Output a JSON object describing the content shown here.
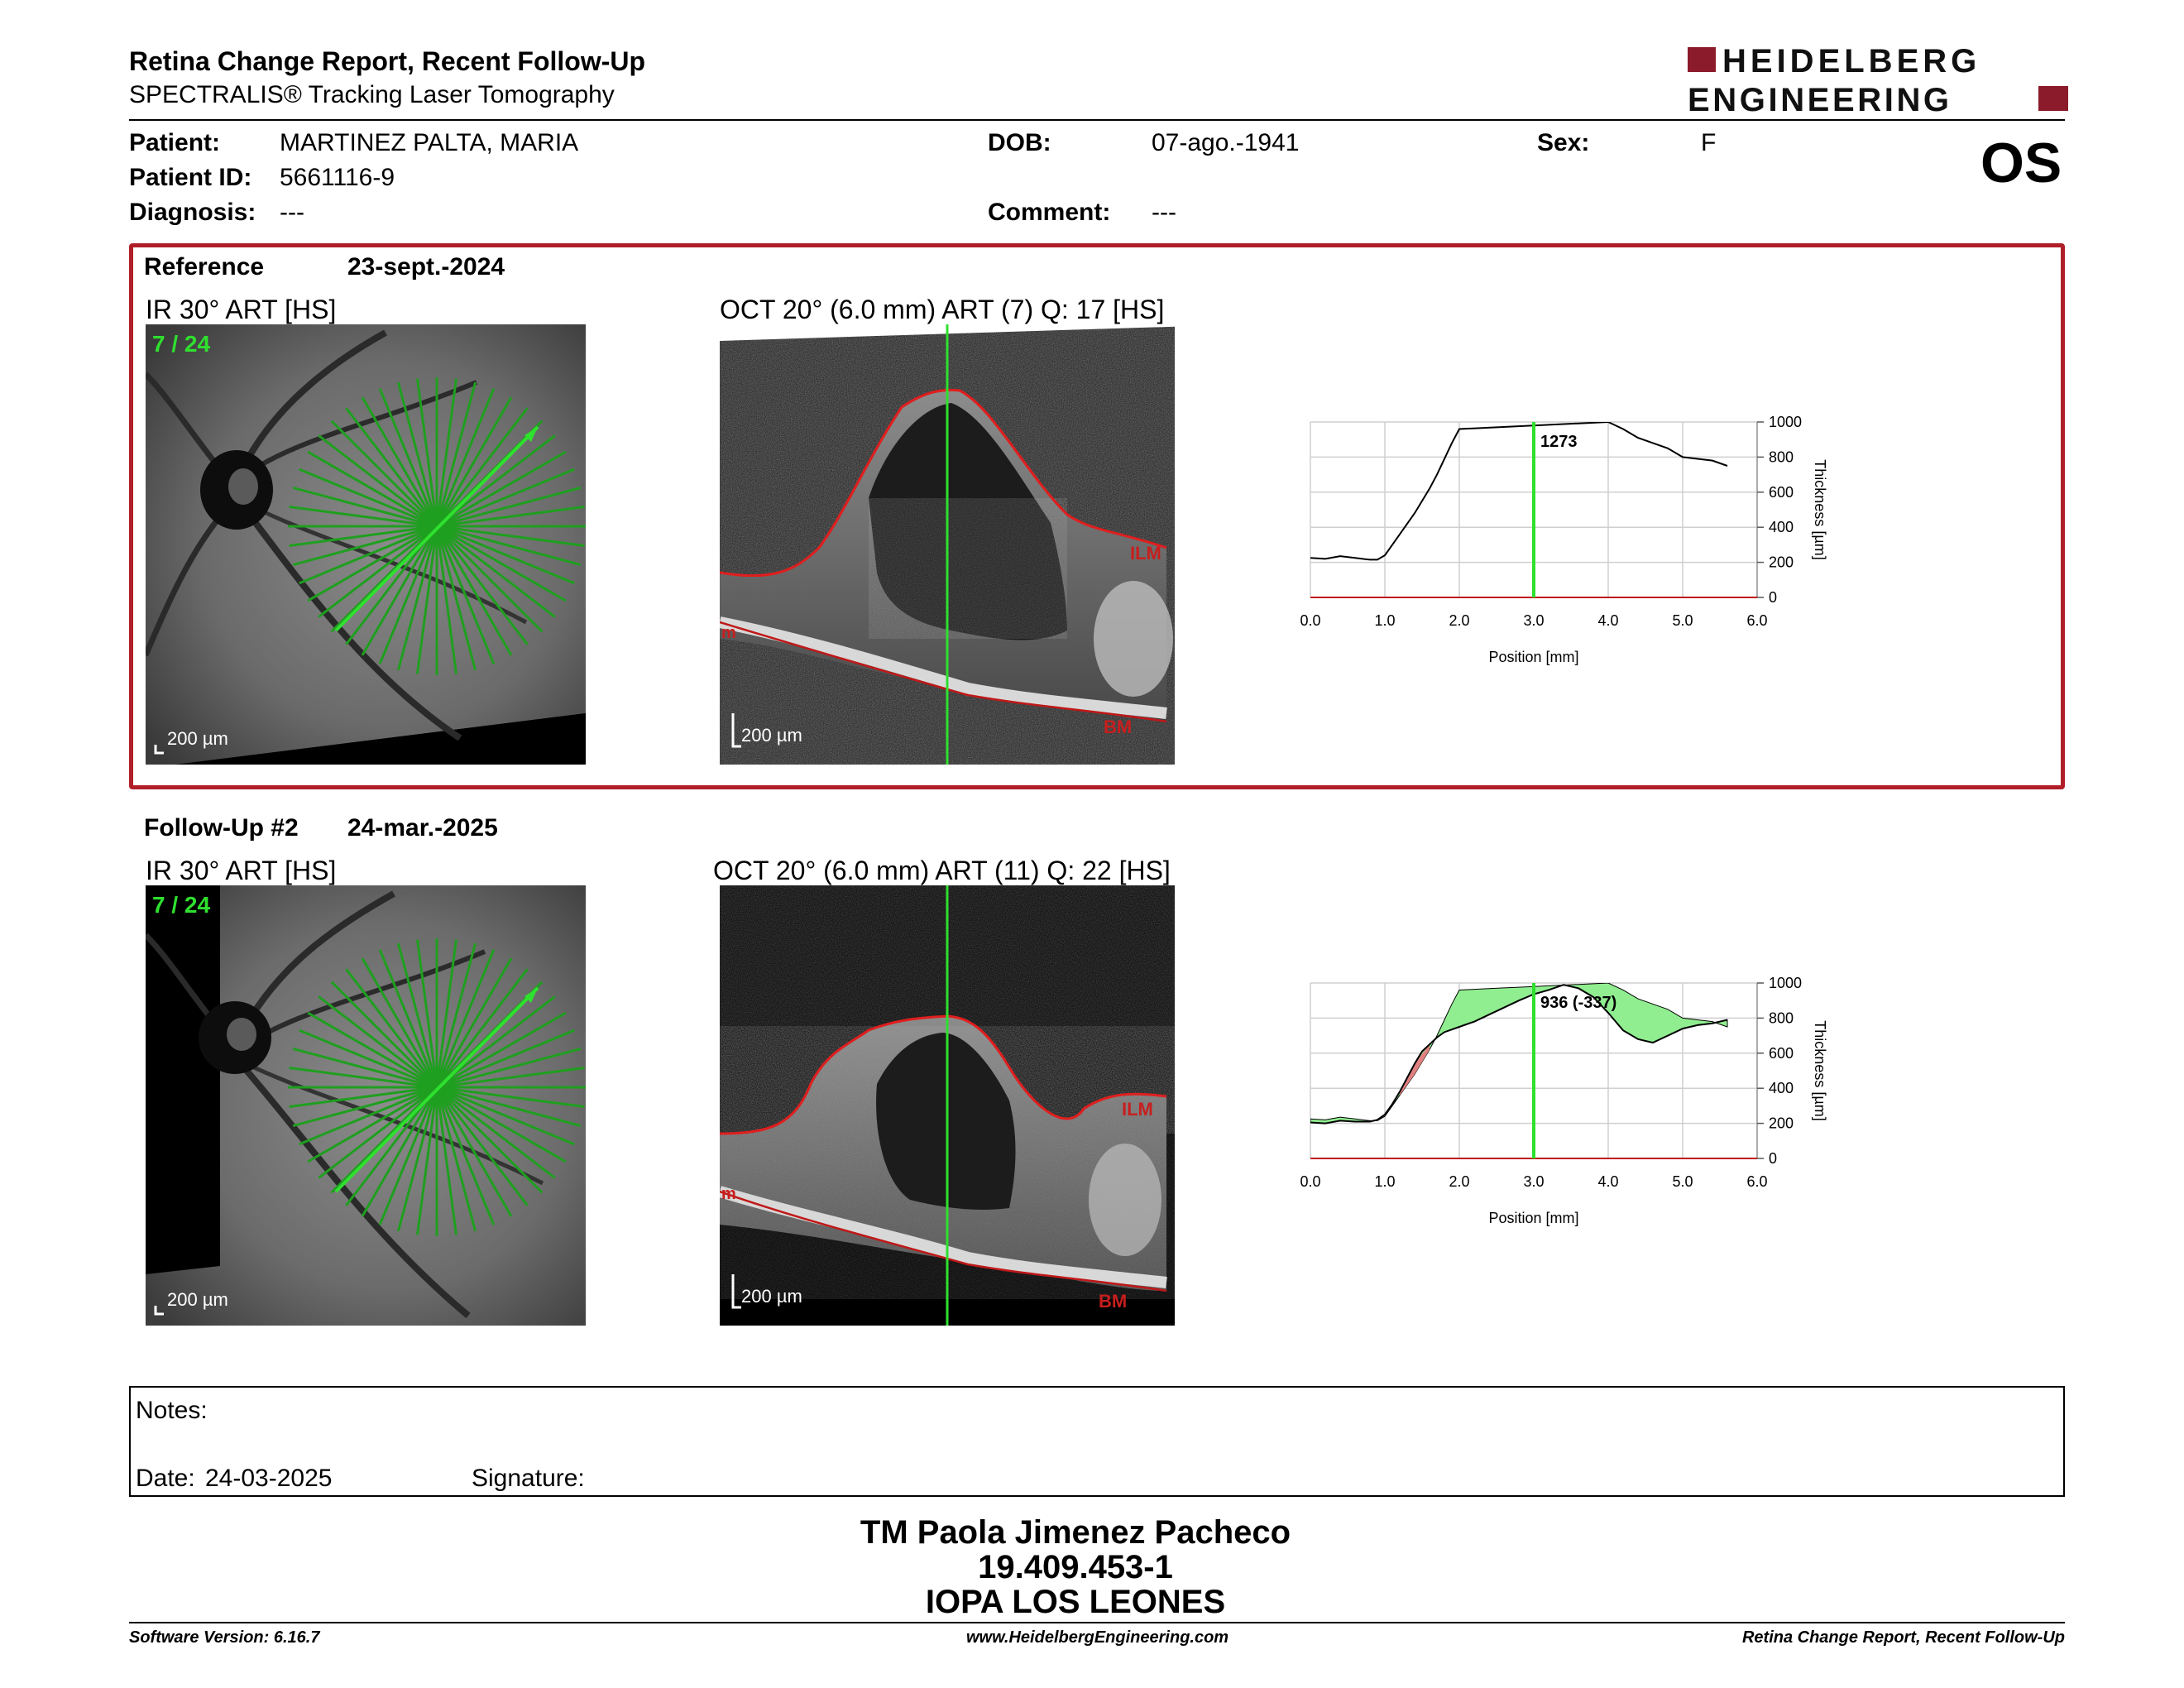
{
  "header": {
    "title": "Retina Change Report, Recent Follow-Up",
    "subtitle": "SPECTRALIS® Tracking Laser Tomography",
    "logo_line1": "HEIDELBERG",
    "logo_line2": "ENGINEERING",
    "eye": "OS"
  },
  "patient": {
    "name_label": "Patient:",
    "name": "MARTINEZ PALTA, MARIA",
    "id_label": "Patient ID:",
    "id": "5661116-9",
    "diagnosis_label": "Diagnosis:",
    "diagnosis": "---",
    "dob_label": "DOB:",
    "dob": "07-ago.-1941",
    "comment_label": "Comment:",
    "comment": "---",
    "sex_label": "Sex:",
    "sex": "F"
  },
  "reference": {
    "label": "Reference",
    "date": "23-sept.-2024",
    "ir_caption": "IR 30° ART [HS]",
    "oct_caption": "OCT 20° (6.0 mm) ART (7) Q: 17 [HS]",
    "slice": "7 / 24",
    "scale_ir": "200 µm",
    "scale_oct": "200 µm",
    "ilm": "ILM",
    "bm": "BM",
    "m": "m"
  },
  "followup": {
    "label": "Follow-Up #2",
    "date": "24-mar.-2025",
    "ir_caption": "IR 30° ART [HS]",
    "oct_caption": "OCT 20° (6.0 mm) ART (11) Q: 22 [HS]",
    "slice": "7 / 24",
    "scale_ir": "200 µm",
    "scale_oct": "200 µm",
    "ilm": "ILM",
    "bm": "BM",
    "m": "m"
  },
  "chart_data": [
    {
      "type": "line",
      "xlabel": "Position [mm]",
      "ylabel": "Thickness [µm]",
      "xlim": [
        0,
        6
      ],
      "ylim": [
        0,
        1000
      ],
      "xticks": [
        "0.0",
        "1.0",
        "2.0",
        "3.0",
        "4.0",
        "5.0",
        "6.0"
      ],
      "yticks": [
        "0",
        "200",
        "400",
        "600",
        "800",
        "1000"
      ],
      "marker_x": 3.0,
      "marker_label": "1273",
      "grid": true,
      "series": [
        {
          "x": [
            0,
            0.2,
            0.4,
            0.6,
            0.8,
            0.9,
            1.0,
            1.1,
            1.2,
            1.3,
            1.4,
            1.5,
            1.6,
            1.7,
            1.8,
            1.9,
            2.0,
            4.0,
            4.2,
            4.4,
            4.6,
            4.8,
            5.0,
            5.2,
            5.4,
            5.6
          ],
          "y": [
            225,
            220,
            235,
            225,
            215,
            215,
            240,
            300,
            360,
            420,
            480,
            550,
            620,
            700,
            790,
            880,
            960,
            1000,
            960,
            910,
            880,
            850,
            800,
            790,
            780,
            750
          ]
        }
      ]
    },
    {
      "type": "line",
      "xlabel": "Position [mm]",
      "ylabel": "Thickness [µm]",
      "xlim": [
        0,
        6
      ],
      "ylim": [
        0,
        1000
      ],
      "xticks": [
        "0.0",
        "1.0",
        "2.0",
        "3.0",
        "4.0",
        "5.0",
        "6.0"
      ],
      "yticks": [
        "0",
        "200",
        "400",
        "600",
        "800",
        "1000"
      ],
      "marker_x": 3.0,
      "marker_label": "936 (-337)",
      "grid": true,
      "series": [
        {
          "x": [
            0,
            0.2,
            0.4,
            0.6,
            0.8,
            0.9,
            1.0,
            1.1,
            1.2,
            1.3,
            1.4,
            1.5,
            1.6,
            1.7,
            1.8,
            1.9,
            2.0,
            2.2,
            2.4,
            2.6,
            2.8,
            3.0,
            3.2,
            3.4,
            3.6,
            3.8,
            4.0,
            4.2,
            4.4,
            4.6,
            4.8,
            5.0,
            5.2,
            5.4,
            5.6
          ],
          "y": [
            205,
            200,
            215,
            210,
            210,
            220,
            250,
            310,
            380,
            460,
            540,
            610,
            650,
            690,
            720,
            735,
            750,
            780,
            820,
            860,
            900,
            936,
            960,
            990,
            970,
            920,
            830,
            730,
            680,
            660,
            700,
            740,
            760,
            770,
            790
          ]
        }
      ],
      "gain_color": "#90ee90",
      "loss_color": "#e08080"
    }
  ],
  "notes": {
    "label": "Notes:",
    "date_label": "Date:",
    "date": "24-03-2025",
    "signature_label": "Signature:"
  },
  "signatory": {
    "name": "TM Paola Jimenez Pacheco",
    "rut": "19.409.453-1",
    "institution": "IOPA LOS LEONES"
  },
  "footer": {
    "software": "Software Version: 6.16.7",
    "website": "www.HeidelbergEngineering.com",
    "report": "Retina Change Report, Recent Follow-Up"
  }
}
